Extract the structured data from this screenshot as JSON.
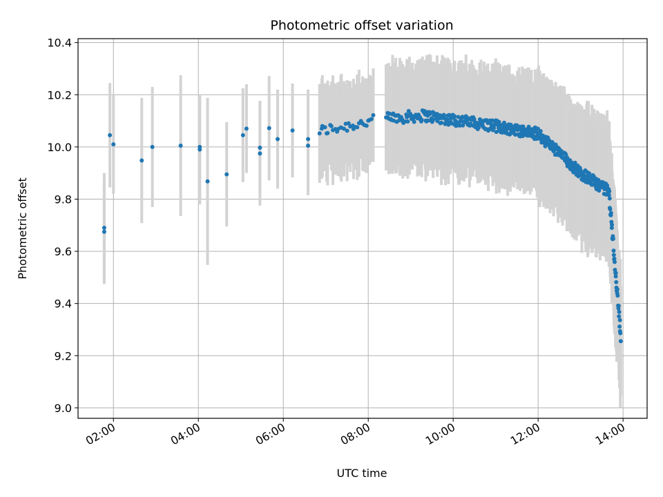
{
  "chart_data": {
    "type": "scatter",
    "title": "Photometric offset variation",
    "xlabel": "UTC time",
    "ylabel": "Photometric offset",
    "x_ticks": [
      "02:00",
      "04:00",
      "06:00",
      "08:00",
      "10:00",
      "12:00",
      "14:00"
    ],
    "y_ticks": [
      "9.0",
      "9.2",
      "9.4",
      "9.6",
      "9.8",
      "10.0",
      "10.2",
      "10.4"
    ],
    "xlim": [
      "01:10",
      "14:34"
    ],
    "ylim": [
      8.96,
      10.415
    ],
    "grid": true,
    "colors": {
      "points": "#1f77b4",
      "errorbars": "#d3d3d3"
    },
    "points_note": "",
    "sparse_points": [
      {
        "x": "01:47",
        "y": 9.69,
        "err": 0.21
      },
      {
        "x": "01:47",
        "y": 9.675,
        "err": 0.2
      },
      {
        "x": "01:55",
        "y": 10.045,
        "err": 0.2
      },
      {
        "x": "02:00",
        "y": 10.01,
        "err": 0.19
      },
      {
        "x": "02:40",
        "y": 9.948,
        "err": 0.24
      },
      {
        "x": "02:55",
        "y": 10.0,
        "err": 0.23
      },
      {
        "x": "03:35",
        "y": 10.005,
        "err": 0.27
      },
      {
        "x": "04:02",
        "y": 10.0,
        "err": 0.2
      },
      {
        "x": "04:02",
        "y": 9.99,
        "err": 0.21
      },
      {
        "x": "04:13",
        "y": 9.868,
        "err": 0.32
      },
      {
        "x": "04:40",
        "y": 9.895,
        "err": 0.2
      },
      {
        "x": "05:03",
        "y": 10.045,
        "err": 0.18
      },
      {
        "x": "05:08",
        "y": 10.07,
        "err": 0.17
      },
      {
        "x": "05:27",
        "y": 9.997,
        "err": 0.18
      },
      {
        "x": "05:27",
        "y": 9.975,
        "err": 0.2
      },
      {
        "x": "05:40",
        "y": 10.072,
        "err": 0.2
      },
      {
        "x": "05:52",
        "y": 10.03,
        "err": 0.19
      },
      {
        "x": "06:13",
        "y": 10.063,
        "err": 0.18
      },
      {
        "x": "06:35",
        "y": 10.005,
        "err": 0.19
      },
      {
        "x": "06:35",
        "y": 10.03,
        "err": 0.19
      }
    ],
    "dense_segments": [
      {
        "start": "06:50",
        "end": "08:08",
        "y_start": 10.06,
        "y_end": 10.1,
        "err": 0.18,
        "count": 32
      },
      {
        "start": "08:25",
        "end": "09:20",
        "y_start": 10.11,
        "y_end": 10.12,
        "err": 0.19,
        "count": 45
      },
      {
        "start": "09:20",
        "end": "11:00",
        "y_start": 10.12,
        "y_end": 10.08,
        "err": 0.2,
        "count": 120
      },
      {
        "start": "11:00",
        "end": "12:00",
        "y_start": 10.08,
        "y_end": 10.05,
        "err": 0.2,
        "count": 110
      },
      {
        "start": "12:00",
        "end": "13:00",
        "y_start": 10.05,
        "y_end": 9.9,
        "err": 0.22,
        "count": 110
      },
      {
        "start": "13:00",
        "end": "13:40",
        "y_start": 9.9,
        "y_end": 9.83,
        "err": 0.24,
        "count": 70
      },
      {
        "start": "13:40",
        "end": "13:57",
        "y_start": 9.83,
        "y_end": 9.27,
        "err": 0.24,
        "count": 40
      }
    ]
  }
}
